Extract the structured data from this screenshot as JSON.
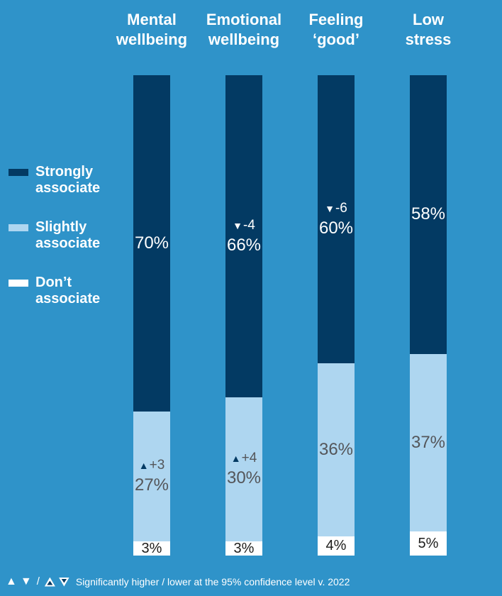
{
  "colors": {
    "background": "#2f93c9",
    "strongly_associate": "#033a63",
    "slightly_associate": "#aed6f0",
    "dont_associate": "#ffffff",
    "light_segment_text": "#54565a",
    "white_segment_text": "#1d1d1b",
    "header_text": "#ffffff"
  },
  "icons": {
    "up_solid": "▲",
    "down_solid": "▼"
  },
  "chart_data": {
    "type": "bar",
    "stacked": true,
    "orientation": "vertical",
    "categories": [
      "Mental wellbeing",
      "Emotional wellbeing",
      "Feeling ‘good’",
      "Low stress"
    ],
    "series": [
      {
        "name": "Strongly associate",
        "key": "strongly",
        "color": "#033a63",
        "values": [
          70,
          66,
          60,
          58
        ],
        "changes_vs_2022": [
          null,
          -4,
          -6,
          null
        ]
      },
      {
        "name": "Slightly associate",
        "key": "slightly",
        "color": "#aed6f0",
        "values": [
          27,
          30,
          36,
          37
        ],
        "changes_vs_2022": [
          3,
          4,
          null,
          null
        ]
      },
      {
        "name": "Don’t associate",
        "key": "dont",
        "color": "#ffffff",
        "values": [
          3,
          3,
          4,
          5
        ],
        "changes_vs_2022": [
          null,
          null,
          null,
          null
        ]
      }
    ],
    "value_suffix": "%",
    "ylim": [
      0,
      100
    ],
    "grid": false,
    "legend_position": "left",
    "footnote": "Significantly higher / lower at the 95% confidence level v. 2022"
  },
  "footer": {
    "separator": "/"
  }
}
